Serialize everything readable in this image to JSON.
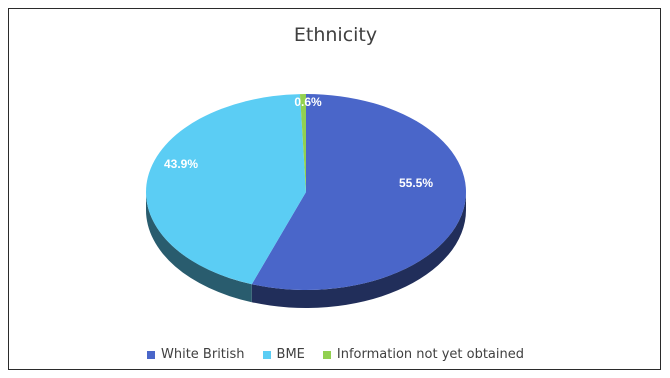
{
  "chart_data": {
    "type": "pie",
    "title": "Ethnicity",
    "slices": [
      {
        "name": "White British",
        "value": 55.5,
        "label": "55.5%",
        "color": "#4A66C9"
      },
      {
        "name": "BME",
        "value": 43.9,
        "label": "43.9%",
        "color": "#5BCDF4"
      },
      {
        "name": "Information not yet obtained",
        "value": 0.6,
        "label": "0.6%",
        "color": "#92D050"
      }
    ],
    "legend_position": "bottom"
  }
}
